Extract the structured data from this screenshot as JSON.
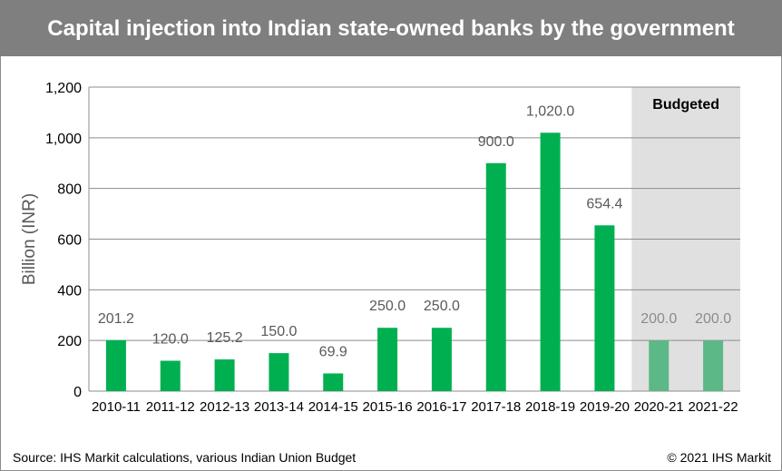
{
  "title": "Capital injection into Indian state-owned banks by the government",
  "footer": {
    "source": "Source: IHS Markit calculations, various Indian Union Budget",
    "copyright": "© 2021 IHS Markit"
  },
  "chart_data": {
    "type": "bar",
    "title": "Capital injection into Indian state-owned banks by the government",
    "xlabel": "",
    "ylabel": "Billion (INR)",
    "ylim": [
      0,
      1200
    ],
    "yticks": [
      0,
      200,
      400,
      600,
      800,
      1000,
      1200
    ],
    "ytick_labels": [
      "0",
      "200",
      "400",
      "600",
      "800",
      "1,000",
      "1,200"
    ],
    "grid": "horizontal",
    "categories": [
      "2010-11",
      "2011-12",
      "2012-13",
      "2013-14",
      "2014-15",
      "2015-16",
      "2016-17",
      "2017-18",
      "2018-19",
      "2019-20",
      "2020-21",
      "2021-22"
    ],
    "values": [
      201.2,
      120.0,
      125.2,
      150.0,
      69.9,
      250.0,
      250.0,
      900.0,
      1020.0,
      654.4,
      200.0,
      200.0
    ],
    "data_labels": [
      "201.2",
      "120.0",
      "125.2",
      "150.0",
      "69.9",
      "250.0",
      "250.0",
      "900.0",
      "1,020.0",
      "654.4",
      "200.0",
      "200.0"
    ],
    "budgeted": [
      false,
      false,
      false,
      false,
      false,
      false,
      false,
      false,
      false,
      false,
      true,
      true
    ],
    "annotation": "Budgeted",
    "colors": {
      "actual": "#00b050",
      "budgeted": "#5cb887",
      "budget_shade": "#e0e0e0",
      "grid": "#8c8c8c",
      "title_bar": "#7f7f7f"
    }
  }
}
